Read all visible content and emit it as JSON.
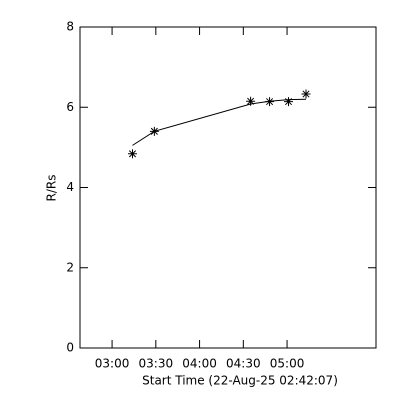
{
  "chart_data": {
    "type": "scatter",
    "xlabel": "Start Time (22-Aug-25 02:42:07)",
    "ylabel": "R/Rs",
    "x": [
      "03:14",
      "03:29",
      "04:35",
      "04:48",
      "05:01",
      "05:13"
    ],
    "series": [
      {
        "color": "#000000",
        "style": "markers",
        "values": [
          4.84,
          5.4,
          6.15,
          6.14,
          6.14,
          6.33
        ]
      },
      {
        "color": "#000000",
        "style": "line",
        "values": [
          5.05,
          5.4,
          6.08,
          6.15,
          6.19,
          6.2
        ]
      }
    ],
    "xlim": [
      "02:38",
      "06:01"
    ],
    "xticks": [
      "03:00",
      "03:30",
      "04:00",
      "04:30",
      "05:00"
    ],
    "ylim": [
      0,
      8
    ],
    "yticks": [
      0,
      2,
      4,
      6,
      8
    ],
    "grid": false
  }
}
